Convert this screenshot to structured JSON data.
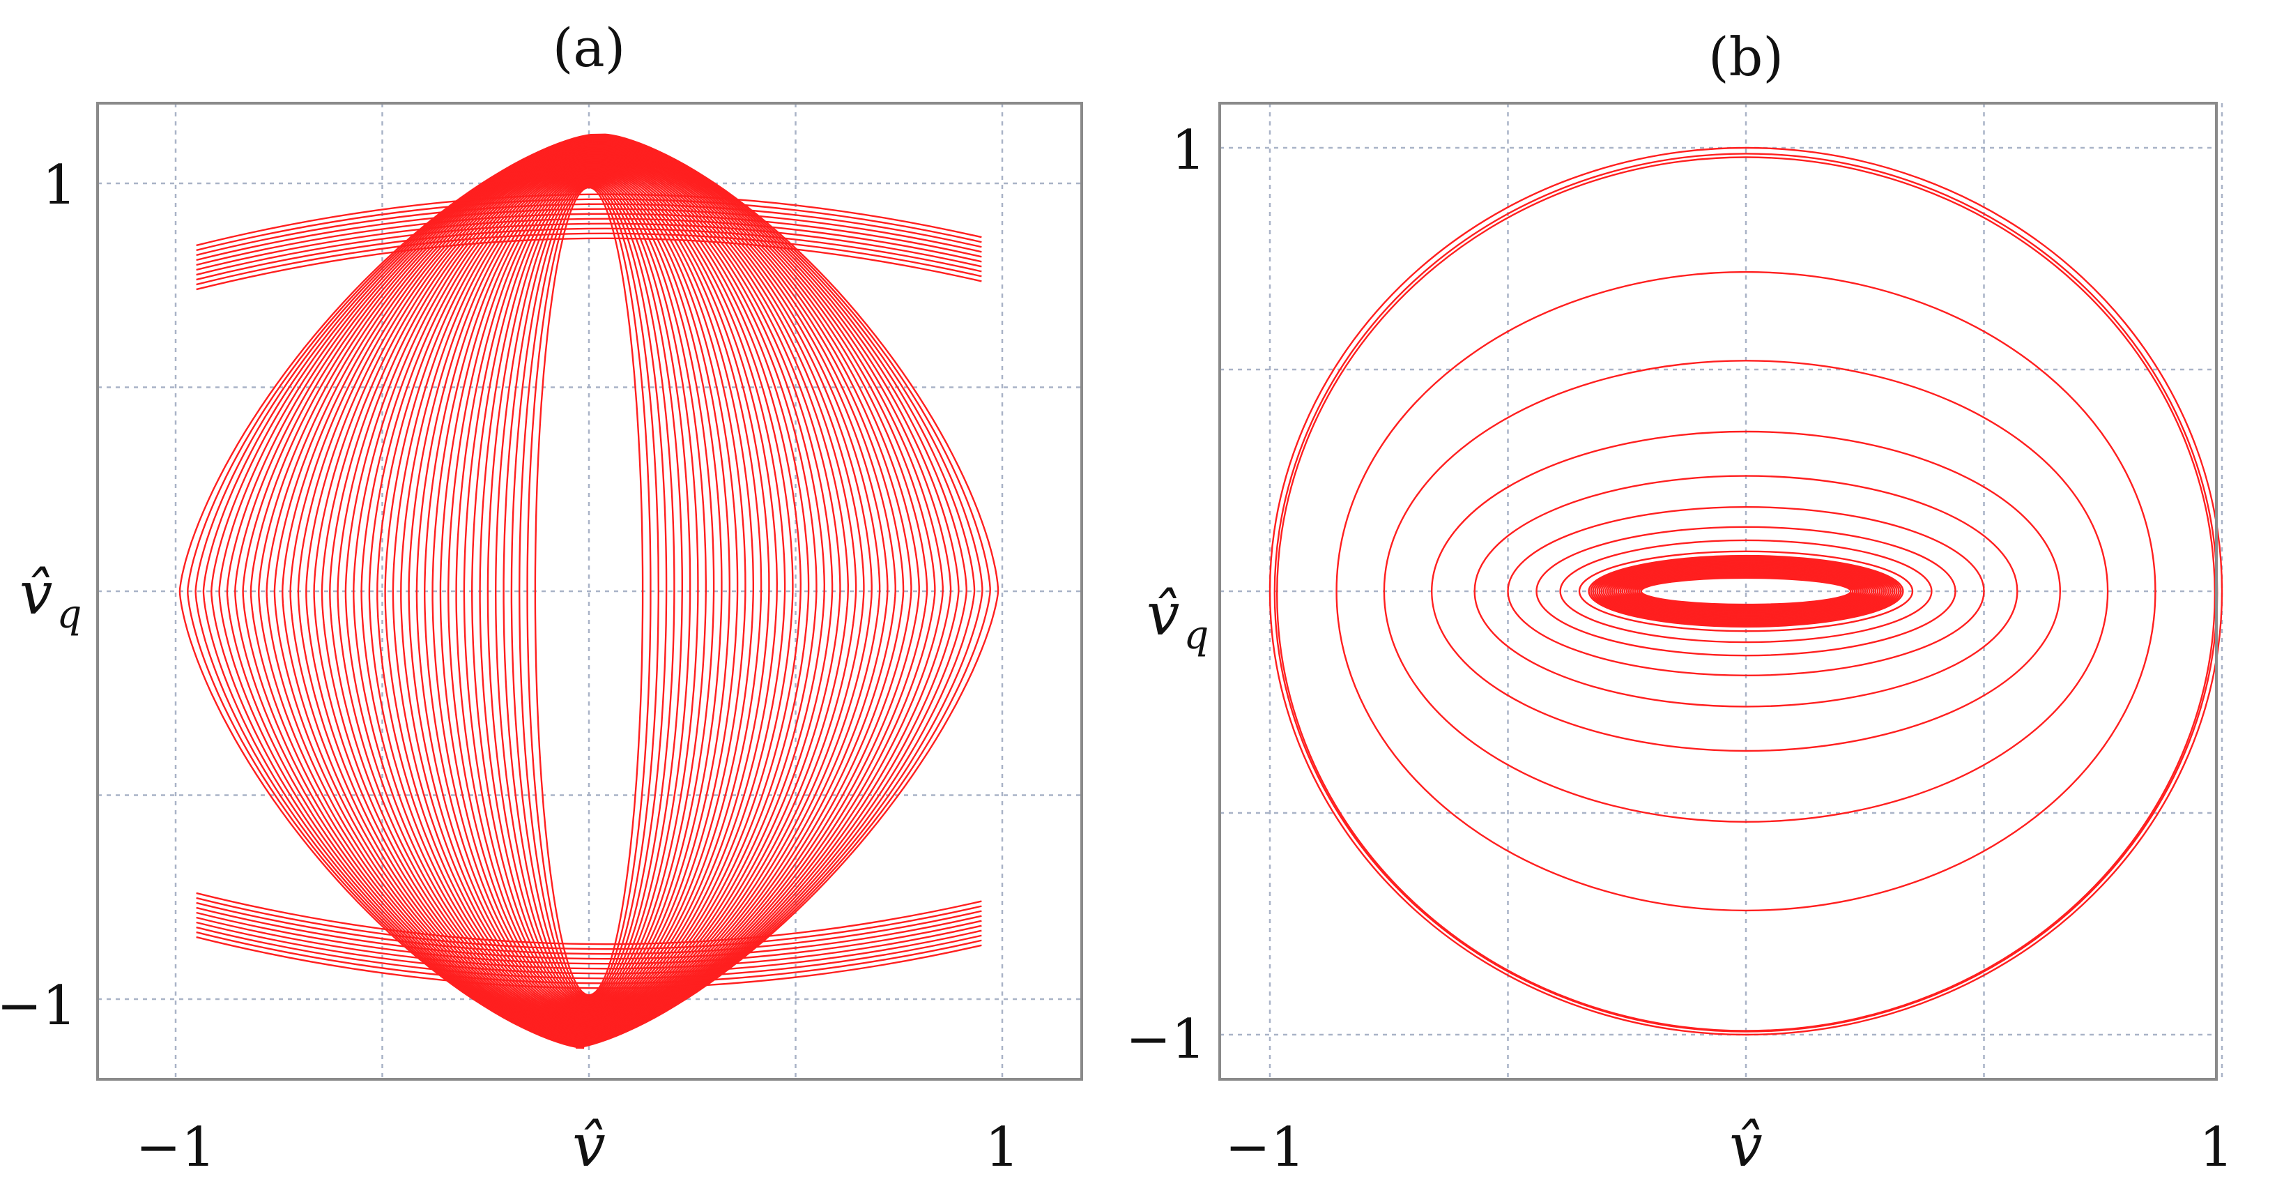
{
  "chart_data": [
    {
      "type": "line",
      "panel": "(a)",
      "xlabel": "v̂",
      "ylabel": "v̂",
      "ylabel_subscript": "q",
      "xlim": [
        -1.1,
        1.1
      ],
      "ylim": [
        -1.15,
        1.15
      ],
      "xticks": [
        {
          "value": -1,
          "label": "−1"
        },
        {
          "value": 1,
          "label": "1"
        }
      ],
      "yticks": [
        {
          "value": -1,
          "label": "−1"
        },
        {
          "value": 1,
          "label": "1"
        }
      ],
      "grid": true,
      "grid_x": [
        -1,
        -0.5,
        0,
        0.5,
        1
      ],
      "grid_y": [
        -1,
        -0.5,
        0,
        0.5,
        1
      ],
      "color": "#ff1f1f",
      "series": [
        {
          "description_points": "outer envelope of nested closed trajectories",
          "x": [
            0,
            0.5,
            0.85,
            0.99,
            0.85,
            0.5,
            0,
            -0.5,
            -0.85,
            -0.99,
            -0.85,
            -0.5,
            0
          ],
          "y": [
            1.12,
            0.96,
            0.6,
            0,
            -0.6,
            -0.96,
            -1.12,
            -0.96,
            -0.6,
            0,
            0.6,
            0.96,
            1.12
          ]
        },
        {
          "description_points": "innermost trajectory",
          "x": [
            0,
            0.09,
            0.15,
            0.09,
            0,
            -0.09,
            -0.15,
            -0.09,
            0
          ],
          "y": [
            1.0,
            0.7,
            0,
            -0.7,
            -1.0,
            -0.7,
            0,
            0.7,
            1.0
          ]
        }
      ]
    },
    {
      "type": "line",
      "panel": "(b)",
      "xlabel": "v̂",
      "ylabel": "v̂",
      "ylabel_subscript": "q",
      "xlim": [
        -1.1,
        1.1
      ],
      "ylim": [
        -1.1,
        1.1
      ],
      "xticks": [
        {
          "value": -1,
          "label": "−1"
        },
        {
          "value": 1,
          "label": "1"
        }
      ],
      "yticks": [
        {
          "value": -1,
          "label": "−1"
        },
        {
          "value": 1,
          "label": "1"
        }
      ],
      "grid": true,
      "grid_x": [
        -1,
        -0.5,
        0,
        0.5,
        1
      ],
      "grid_y": [
        -1,
        -0.5,
        0,
        0.5,
        1
      ],
      "color": "#ff1f1f",
      "series": [
        {
          "description_points": "outermost trajectory",
          "x": [
            0,
            0.7,
            1.0,
            0.7,
            0,
            -0.7,
            -1.0,
            -0.7,
            0
          ],
          "y": [
            1.0,
            0.7,
            0,
            -0.7,
            -1.0,
            -0.7,
            0,
            0.7,
            1.0
          ]
        },
        {
          "description_points": "inner limit ellipse",
          "x": [
            0,
            0.16,
            0.22,
            0.16,
            0,
            -0.16,
            -0.22,
            -0.16,
            0
          ],
          "y": [
            0.03,
            0.02,
            0,
            -0.02,
            -0.03,
            -0.02,
            0,
            0.02,
            0.03
          ]
        }
      ]
    }
  ]
}
